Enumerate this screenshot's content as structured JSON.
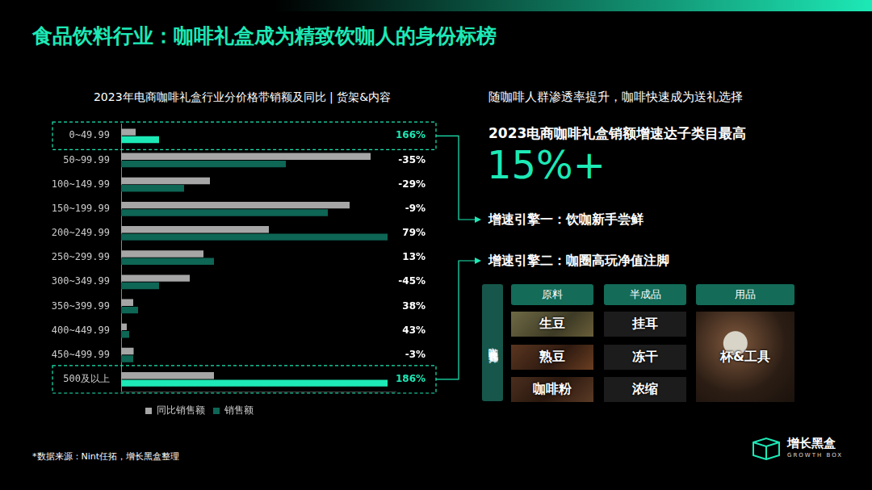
{
  "header": {
    "title": "食品饮料行业：咖啡礼盒成为精致饮咖人的身份标榜"
  },
  "chart_data": {
    "type": "bar",
    "title": "2023年电商咖啡礼盒行业分价格带销额及同比 | 货架&内容",
    "orientation": "horizontal",
    "categories": [
      "0~49.99",
      "50~99.99",
      "100~149.99",
      "150~199.99",
      "200~249.99",
      "250~299.99",
      "300~349.99",
      "350~399.99",
      "400~449.99",
      "450~499.99",
      "500及以上"
    ],
    "series": [
      {
        "name": "同比销售额",
        "color": "#a6a6a6",
        "values": [
          18,
          309,
          110,
          283,
          183,
          102,
          85,
          15,
          7,
          15.5,
          115
        ]
      },
      {
        "name": "销售额",
        "color": "#0e6655",
        "colors": [
          "#1de9b6",
          "#0e6655",
          "#0e6655",
          "#0e6655",
          "#0e6655",
          "#0e6655",
          "#0e6655",
          "#0e6655",
          "#0e6655",
          "#0e6655",
          "#1de9b6"
        ],
        "values": [
          47,
          204,
          78,
          256,
          330,
          115,
          47,
          21,
          10,
          15,
          330
        ]
      }
    ],
    "growth_labels": [
      "166%",
      "-35%",
      "-29%",
      "-9%",
      "79%",
      "13%",
      "-45%",
      "38%",
      "43%",
      "-3%",
      "186%"
    ],
    "xlim": [
      0,
      340
    ],
    "grid": false,
    "legend": "bottom",
    "tick_labels": "y"
  },
  "panel": {
    "intro": "随咖啡人群渗透率提升，咖啡快速成为送礼选择",
    "headline": "2023电商咖啡礼盒销额增速达子类目最高",
    "big_number": "15%+",
    "engine_1": "增速引擎一：饮咖新手尝鲜",
    "engine_2": "增速引擎二：咖圈高玩净值注脚",
    "table": {
      "side_label": "咖啡礼盒套包选择",
      "columns": [
        {
          "head": "原料",
          "items": [
            "生豆",
            "熟豆",
            "咖啡粉"
          ]
        },
        {
          "head": "半成品",
          "items": [
            "挂耳",
            "冻干",
            "浓缩"
          ]
        },
        {
          "head": "用品",
          "items": [
            "杯&工具"
          ]
        }
      ]
    }
  },
  "footer": {
    "source": "*数据来源：Nint任拓，增长黑盒整理",
    "logo": "增长黑盒",
    "logo_sub": "GROWTH BOX"
  }
}
